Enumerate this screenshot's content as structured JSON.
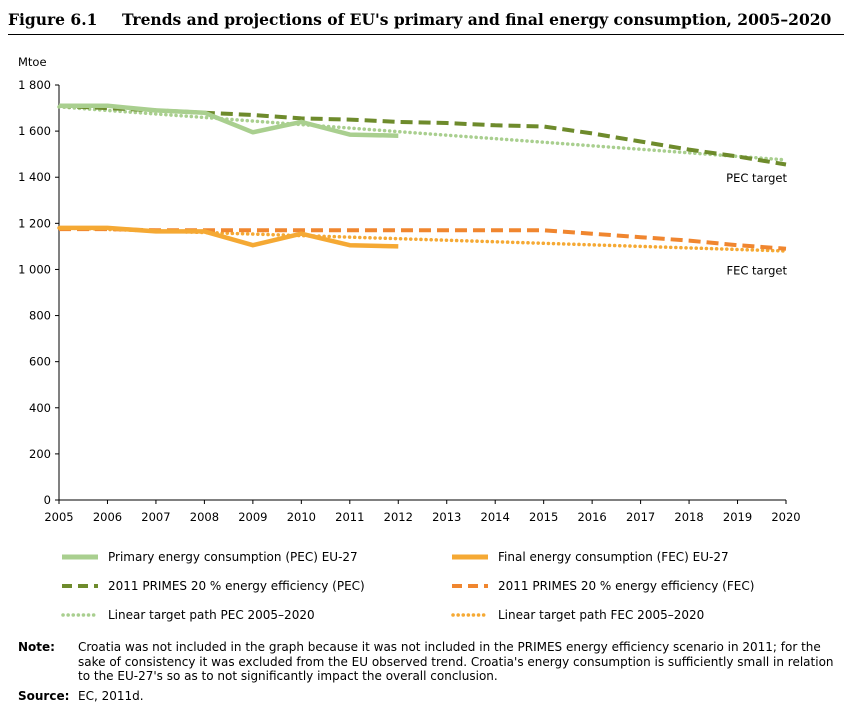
{
  "figure": {
    "number": "Figure 6.1",
    "title": "Trends and projections of EU's primary and final energy consumption, 2005–2020"
  },
  "chart_data": {
    "type": "line",
    "ylabel": "Mtoe",
    "ylim": [
      0,
      1800
    ],
    "xlim": [
      2005,
      2020
    ],
    "yticks": [
      0,
      200,
      400,
      600,
      800,
      1000,
      1200,
      1400,
      1600,
      1800
    ],
    "ytick_labels": [
      "0",
      "200",
      "400",
      "600",
      "800",
      "1 000",
      "1 200",
      "1 400",
      "1 600",
      "1 800"
    ],
    "xticks": [
      "2005",
      "2006",
      "2007",
      "2008",
      "2009",
      "2010",
      "2011",
      "2012",
      "2013",
      "2014",
      "2015",
      "2016",
      "2017",
      "2018",
      "2019",
      "2020"
    ],
    "grid": false,
    "series": [
      {
        "name": "Primary energy consumption (PEC) EU-27",
        "style": "solid",
        "color": "#a9cf8f",
        "x": [
          2005,
          2006,
          2007,
          2008,
          2009,
          2010,
          2011,
          2012
        ],
        "y": [
          1710,
          1710,
          1690,
          1680,
          1595,
          1640,
          1585,
          1580
        ]
      },
      {
        "name": "2011 PRIMES 20 % energy efficiency (PEC)",
        "style": "dashed",
        "color": "#6e8b2c",
        "x": [
          2005,
          2006,
          2007,
          2008,
          2009,
          2010,
          2011,
          2012,
          2013,
          2014,
          2015,
          2016,
          2017,
          2018,
          2019,
          2020
        ],
        "y": [
          1710,
          1700,
          1690,
          1680,
          1670,
          1655,
          1650,
          1640,
          1635,
          1625,
          1620,
          1590,
          1555,
          1520,
          1490,
          1455
        ]
      },
      {
        "name": "Linear target path PEC 2005–2020",
        "style": "dotted",
        "color": "#a9cf8f",
        "x": [
          2005,
          2020
        ],
        "y": [
          1705,
          1475
        ]
      },
      {
        "name": "Final energy consumption (FEC) EU-27",
        "style": "solid",
        "color": "#f5a934",
        "x": [
          2005,
          2006,
          2007,
          2008,
          2009,
          2010,
          2011,
          2012
        ],
        "y": [
          1180,
          1180,
          1165,
          1165,
          1105,
          1155,
          1105,
          1100
        ]
      },
      {
        "name": "2011 PRIMES 20 % energy efficiency (FEC)",
        "style": "dashed",
        "color": "#f0862f",
        "x": [
          2005,
          2006,
          2007,
          2008,
          2009,
          2010,
          2011,
          2012,
          2013,
          2014,
          2015,
          2016,
          2017,
          2018,
          2019,
          2020
        ],
        "y": [
          1175,
          1175,
          1170,
          1170,
          1170,
          1170,
          1170,
          1170,
          1170,
          1170,
          1170,
          1155,
          1140,
          1125,
          1105,
          1090
        ]
      },
      {
        "name": "Linear target path FEC 2005–2020",
        "style": "dotted",
        "color": "#f5a934",
        "x": [
          2005,
          2020
        ],
        "y": [
          1180,
          1080
        ]
      }
    ],
    "annotations": [
      {
        "text": "PEC target",
        "x": 2020,
        "y": 1400
      },
      {
        "text": "FEC target",
        "x": 2020,
        "y": 1000
      }
    ]
  },
  "legend": {
    "items": [
      "Primary energy consumption (PEC) EU-27",
      "Final energy consumption (FEC) EU-27",
      "2011 PRIMES 20 % energy efficiency (PEC)",
      "2011 PRIMES 20 % energy efficiency (FEC)",
      "Linear target path PEC 2005–2020",
      "Linear target path FEC 2005–2020"
    ]
  },
  "note": {
    "label": "Note:",
    "text": "Croatia was not included in the graph because it was not included in the PRIMES energy efficiency scenario in 2011; for the sake of consistency it was excluded from the EU observed trend. Croatia's energy consumption is sufficiently small in relation to the EU-27's so as to not significantly impact the overall conclusion."
  },
  "source": {
    "label": "Source:",
    "text": "EC, 2011d."
  }
}
